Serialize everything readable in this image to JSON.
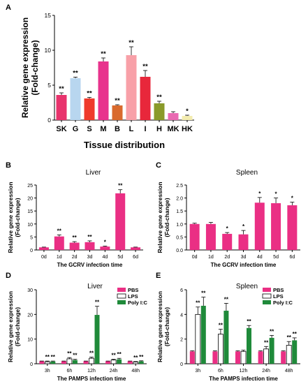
{
  "chart_data": [
    {
      "panel": "A",
      "type": "bar",
      "title": "",
      "xlabel": "Tissue distribution",
      "ylabel": "Relative gene expression\n(Fold-change)",
      "ylim": [
        0,
        15
      ],
      "yticks": [
        0,
        5,
        10,
        15
      ],
      "categories": [
        "SK",
        "G",
        "S",
        "M",
        "B",
        "L",
        "I",
        "H",
        "MK",
        "HK"
      ],
      "values": [
        3.6,
        6.0,
        3.1,
        8.4,
        2.1,
        9.3,
        6.2,
        2.4,
        1.0,
        0.6
      ],
      "errors": [
        0.3,
        0.15,
        0.15,
        0.5,
        0.1,
        1.2,
        0.9,
        0.3,
        0.2,
        0.1
      ],
      "sig": [
        "**",
        "**",
        "**",
        "**",
        "**",
        "**",
        "**",
        "**",
        "",
        "*"
      ],
      "colors": [
        "#e8336d",
        "#b8d6ef",
        "#ef3a2c",
        "#e8338d",
        "#d96a2d",
        "#f8a0a8",
        "#e8273b",
        "#8a9a2a",
        "#e96ab2",
        "#f3ecb0"
      ]
    },
    {
      "panel": "B",
      "type": "bar",
      "title": "Liver",
      "xlabel": "The GCRV infection time",
      "ylabel": "Relative gene expression\n(Fold-change)",
      "ylim": [
        0,
        25
      ],
      "yticks": [
        0,
        5,
        10,
        15,
        20,
        25
      ],
      "categories": [
        "0d",
        "1d",
        "2d",
        "3d",
        "4d",
        "5d",
        "6d"
      ],
      "values": [
        1.0,
        5.2,
        2.8,
        3.0,
        1.3,
        21.8,
        1.0
      ],
      "errors": [
        0.1,
        0.6,
        0.4,
        0.5,
        0.2,
        1.4,
        0.1
      ],
      "sig": [
        "",
        "**",
        "**",
        "**",
        "*",
        "**",
        ""
      ],
      "color": "#ea2f84"
    },
    {
      "panel": "C",
      "type": "bar",
      "title": "Spleen",
      "xlabel": "The GCRV infection time",
      "ylabel": "Relative gene expression\n(Fold-change)",
      "ylim": [
        0,
        2.5
      ],
      "yticks": [
        0.0,
        0.5,
        1.0,
        1.5,
        2.0,
        2.5
      ],
      "categories": [
        "0d",
        "1d",
        "2d",
        "3d",
        "4d",
        "5d",
        "6d"
      ],
      "values": [
        1.0,
        1.0,
        0.62,
        0.6,
        1.82,
        1.8,
        1.72
      ],
      "errors": [
        0.03,
        0.06,
        0.05,
        0.15,
        0.2,
        0.2,
        0.12
      ],
      "sig": [
        "",
        "",
        "*",
        "*",
        "*",
        "*",
        "*"
      ],
      "color": "#ea2f84"
    },
    {
      "panel": "D",
      "type": "bar",
      "title": "Liver",
      "xlabel": "The PAMPS infection time",
      "ylabel": "Relative gene expression\n(Fold-change)",
      "ylim": [
        0,
        30
      ],
      "yticks": [
        0,
        10,
        20,
        30
      ],
      "categories": [
        "3h",
        "6h",
        "12h",
        "24h",
        "48h"
      ],
      "series": [
        {
          "name": "PBS",
          "values": [
            1.0,
            1.0,
            1.0,
            1.0,
            1.0
          ],
          "errors": [
            0.1,
            0.1,
            0.1,
            0.1,
            0.1
          ],
          "sig": [
            "",
            "",
            "",
            "",
            ""
          ],
          "color": "#ea2f84"
        },
        {
          "name": "LPS",
          "values": [
            0.8,
            2.0,
            2.2,
            1.5,
            0.7
          ],
          "errors": [
            0.3,
            0.5,
            0.5,
            0.3,
            0.2
          ],
          "sig": [
            "**",
            "**",
            "**",
            "**",
            "**"
          ],
          "color": "#ffffff"
        },
        {
          "name": "Poly I:C",
          "values": [
            0.9,
            1.5,
            19.8,
            1.8,
            1.0
          ],
          "errors": [
            0.2,
            0.3,
            3.5,
            0.4,
            0.2
          ],
          "sig": [
            "**",
            "**",
            "**",
            "**",
            "**"
          ],
          "color": "#1f8a3a"
        }
      ]
    },
    {
      "panel": "E",
      "type": "bar",
      "title": "Spleen",
      "xlabel": "The PAMPS infection time",
      "ylabel": "Relative gene expression\n(Fold-change)",
      "ylim": [
        0,
        6
      ],
      "yticks": [
        0,
        2,
        4,
        6
      ],
      "categories": [
        "3h",
        "6h",
        "12h",
        "24h",
        "48h"
      ],
      "series": [
        {
          "name": "PBS",
          "values": [
            1.0,
            1.0,
            1.0,
            1.0,
            1.0
          ],
          "errors": [
            0.05,
            0.05,
            0.05,
            0.05,
            0.05
          ],
          "sig": [
            "",
            "",
            "",
            "",
            ""
          ],
          "color": "#ea2f84"
        },
        {
          "name": "LPS",
          "values": [
            4.0,
            2.4,
            1.0,
            1.2,
            1.5
          ],
          "errors": [
            0.6,
            0.4,
            0.1,
            0.2,
            0.3
          ],
          "sig": [
            "**",
            "**",
            "",
            "**",
            "**"
          ],
          "color": "#ffffff"
        },
        {
          "name": "Poly I:C",
          "values": [
            4.7,
            4.3,
            2.9,
            2.1,
            1.9
          ],
          "errors": [
            0.7,
            0.6,
            0.2,
            0.2,
            0.2
          ],
          "sig": [
            "**",
            "**",
            "**",
            "**",
            "**"
          ],
          "color": "#1f8a3a"
        }
      ]
    }
  ]
}
